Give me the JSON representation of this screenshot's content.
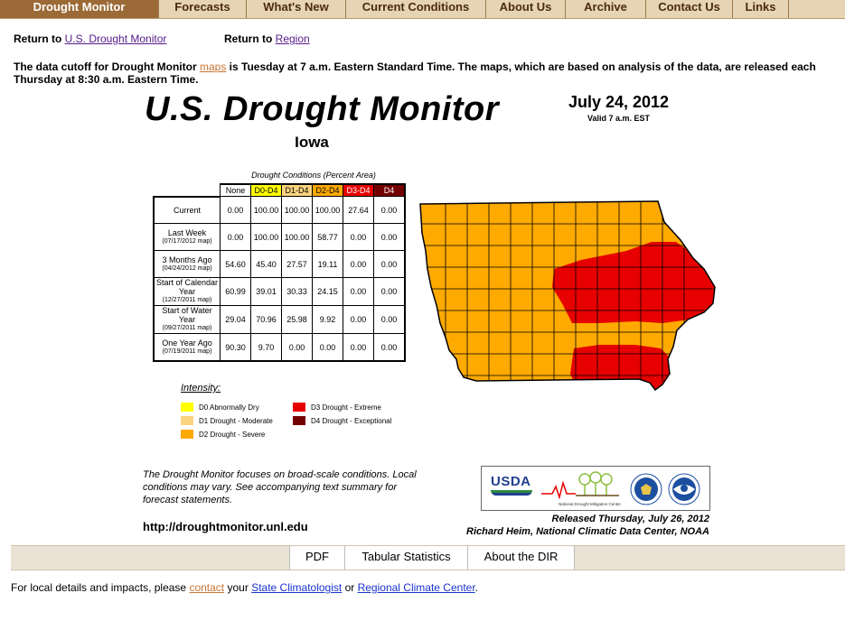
{
  "nav": {
    "items": [
      {
        "label": "Drought Monitor",
        "active": true
      },
      {
        "label": "Forecasts"
      },
      {
        "label": "What's New"
      },
      {
        "label": "Current Conditions"
      },
      {
        "label": "About Us"
      },
      {
        "label": "Archive"
      },
      {
        "label": "Contact Us"
      },
      {
        "label": "Links"
      }
    ]
  },
  "returns": {
    "usdm_prefix": "Return to",
    "usdm_link": "U.S. Drought Monitor",
    "region_prefix": "Return to",
    "region_link": "Region"
  },
  "cutoff": {
    "part1": "The data cutoff for Drought Monitor",
    "link": "maps",
    "part2": "is Tuesday at 7 a.m. Eastern Standard Time. The maps, which are based on analysis of the data, are released each Thursday at 8:30 a.m. Eastern Time."
  },
  "map": {
    "title": "U.S. Drought Monitor",
    "state": "Iowa",
    "date": "July 24, 2012",
    "valid": "Valid 7 a.m. EST",
    "table_caption": "Drought Conditions (Percent Area)",
    "columns": [
      "None",
      "D0-D4",
      "D1-D4",
      "D2-D4",
      "D3-D4",
      "D4"
    ],
    "column_colors": [
      "#ffffff",
      "#ffff00",
      "#fcd37f",
      "#ffaa00",
      "#e60000",
      "#730000"
    ],
    "column_text_colors": [
      "#000000",
      "#000000",
      "#000000",
      "#000000",
      "#ffffff",
      "#ffffff"
    ],
    "rows": [
      {
        "label": "Current",
        "sub": "",
        "values": [
          "0.00",
          "100.00",
          "100.00",
          "100.00",
          "27.64",
          "0.00"
        ]
      },
      {
        "label": "Last Week",
        "sub": "(07/17/2012 map)",
        "values": [
          "0.00",
          "100.00",
          "100.00",
          "58.77",
          "0.00",
          "0.00"
        ]
      },
      {
        "label": "3 Months Ago",
        "sub": "(04/24/2012 map)",
        "values": [
          "54.60",
          "45.40",
          "27.57",
          "19.11",
          "0.00",
          "0.00"
        ]
      },
      {
        "label": "Start of Calendar Year",
        "sub": "(12/27/2011 map)",
        "values": [
          "60.99",
          "39.01",
          "30.33",
          "24.15",
          "0.00",
          "0.00"
        ]
      },
      {
        "label": "Start of Water Year",
        "sub": "(09/27/2011 map)",
        "values": [
          "29.04",
          "70.96",
          "25.98",
          "9.92",
          "0.00",
          "0.00"
        ]
      },
      {
        "label": "One Year Ago",
        "sub": "(07/19/2011 map)",
        "values": [
          "90.30",
          "9.70",
          "0.00",
          "0.00",
          "0.00",
          "0.00"
        ]
      }
    ],
    "legend_title": "Intensity:",
    "legend": [
      {
        "label": "D0 Abnormally Dry",
        "color": "#ffff00"
      },
      {
        "label": "D1 Drought - Moderate",
        "color": "#fcd37f"
      },
      {
        "label": "D2 Drought - Severe",
        "color": "#ffaa00"
      },
      {
        "label": "D3 Drought - Extreme",
        "color": "#e60000"
      },
      {
        "label": "D4 Drought - Exceptional",
        "color": "#730000"
      }
    ],
    "note": "The Drought Monitor focuses on broad-scale conditions. Local conditions may vary. See accompanying text summary for forecast statements.",
    "url": "http://droughtmonitor.unl.edu",
    "released": "Released Thursday, July 26, 2012",
    "author": "Richard Heim, National Climatic Data Center, NOAA",
    "logos": {
      "usda": "USDA",
      "ndmc": "National Drought Mitigation Center"
    }
  },
  "bottom_bar": {
    "pdf": "PDF",
    "tabular": "Tabular Statistics",
    "about": "About the DIR"
  },
  "footer": {
    "part1": "For local details and impacts, please",
    "contact": "contact",
    "part2": "your",
    "state_clim": "State Climatologist",
    "part3": "or",
    "regional": "Regional Climate Center",
    "end": "."
  }
}
